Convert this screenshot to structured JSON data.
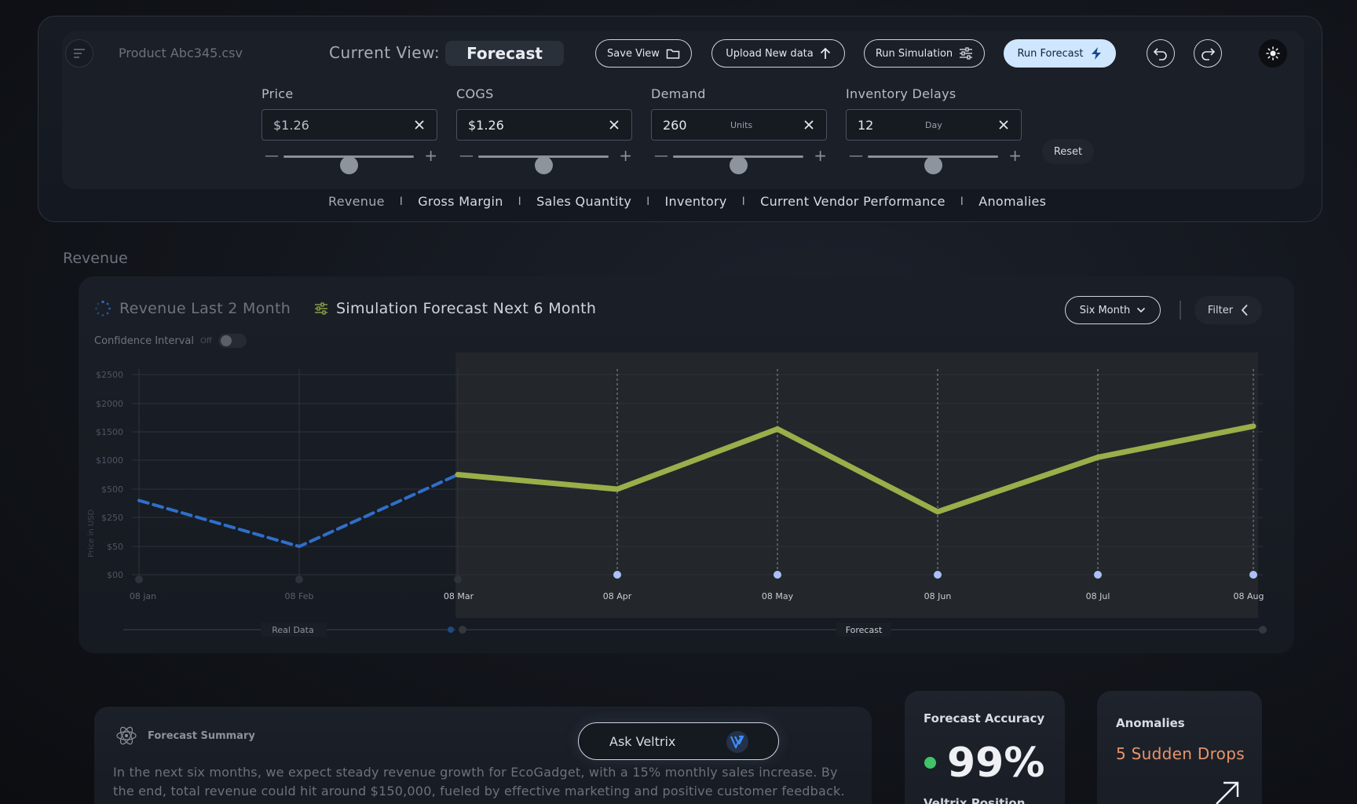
{
  "header": {
    "menu_icon": "menu-icon",
    "file_name": "Product Abc345.csv",
    "current_view_label": "Current View:",
    "current_view_value": "Forecast",
    "buttons": {
      "save_view": "Save View",
      "upload": "Upload New data",
      "run_simulation": "Run Simulation",
      "run_forecast": "Run Forecast"
    }
  },
  "params": [
    {
      "label": "Price",
      "value": "$1.26",
      "unit": "",
      "slider": 0.5
    },
    {
      "label": "COGS",
      "value": "$1.26",
      "unit": "",
      "slider": 0.5
    },
    {
      "label": "Demand",
      "value": "260",
      "unit": "Units",
      "slider": 0.5
    },
    {
      "label": "Inventory Delays",
      "value": "12",
      "unit": "Day",
      "slider": 0.5
    }
  ],
  "reset_label": "Reset",
  "tabs": [
    "Revenue",
    "Gross Margin",
    "Sales Quantity",
    "Inventory",
    "Current Vendor Performance",
    "Anomalies"
  ],
  "tab_separator": "I",
  "section_title": "Revenue",
  "chart_header": {
    "legend_real": "Revenue Last 2 Month",
    "legend_forecast": "Simulation Forecast Next 6 Month",
    "confidence_label": "Confidence Interval",
    "confidence_state": "Off",
    "range_select": "Six Month",
    "filter_label": "Filter"
  },
  "chart_data": {
    "type": "line",
    "ylabel": "Price in USD",
    "y_ticks": [
      "$2500",
      "$2000",
      "$1500",
      "$1000",
      "$500",
      "$250",
      "$50",
      "$00"
    ],
    "x_ticks": [
      "08 jan",
      "08 Feb",
      "08 Mar",
      "08 Apr",
      "08 May",
      "08 Jun",
      "08 Jul",
      "08 Aug"
    ],
    "series": [
      {
        "name": "Real Data",
        "x": [
          "08 jan",
          "08 Feb",
          "08 Mar"
        ],
        "values": [
          400,
          50,
          750
        ],
        "color": "#2f6fc9",
        "style": "dashed"
      },
      {
        "name": "Forecast",
        "x": [
          "08 Mar",
          "08 Apr",
          "08 May",
          "08 Jun",
          "08 Jul",
          "08 Aug"
        ],
        "values": [
          750,
          500,
          1550,
          300,
          1050,
          1600
        ],
        "color": "#9aae4a",
        "style": "solid"
      }
    ],
    "grid": true
  },
  "summary": {
    "title": "Forecast Summary",
    "text": "In the next six months, we expect steady revenue growth for EcoGadget, with a 15% monthly sales increase. By the end, total revenue could hit around $150,000, fueled by effective marketing and positive customer feedback.",
    "ask_label": "Ask Veltrix"
  },
  "accuracy": {
    "title": "Forecast Accuracy",
    "value": "99%",
    "subtitle": "Veltrix Position"
  },
  "anomalies": {
    "title": "Anomalies",
    "value": "5 Sudden Drops"
  },
  "colors": {
    "accent_blue": "#cfe6ff",
    "forecast_line": "#9aae4a",
    "real_line": "#2f6fc9",
    "anomaly": "#e8946a",
    "status_green": "#3fc46a"
  }
}
